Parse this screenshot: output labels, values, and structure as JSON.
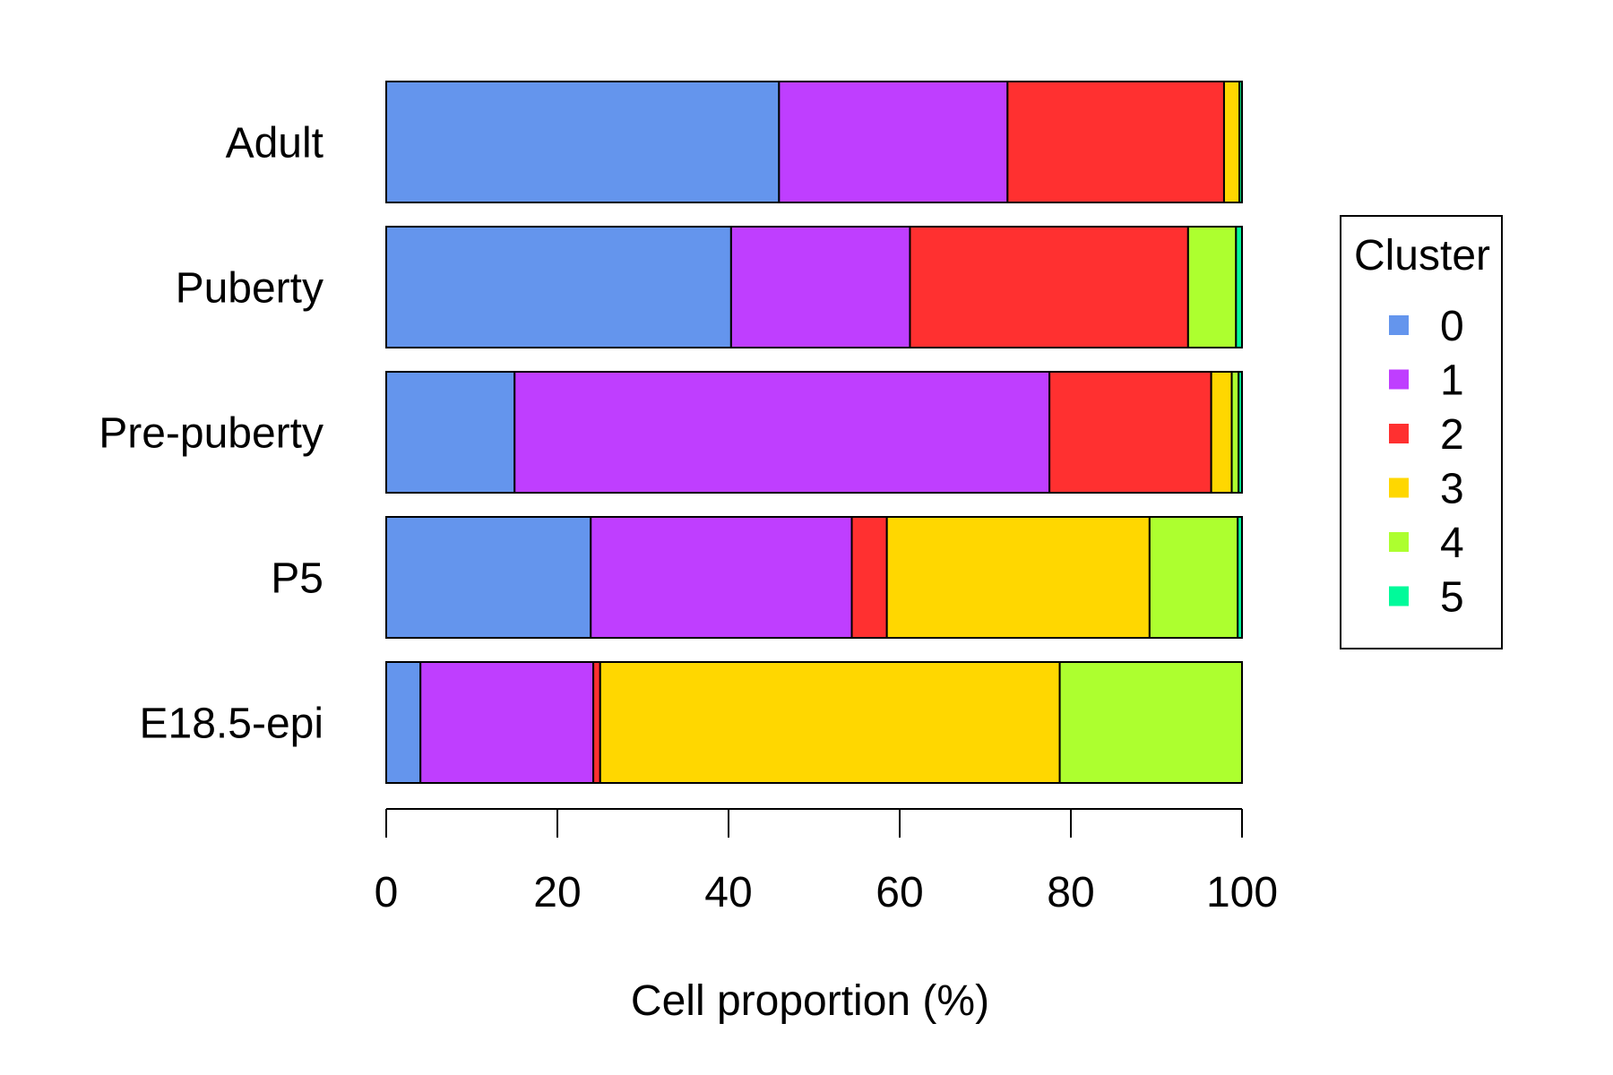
{
  "chart_data": {
    "type": "bar",
    "orientation": "horizontal",
    "stacked": true,
    "categories": [
      "Adult",
      "Puberty",
      "Pre-puberty",
      "P5",
      "E18.5-epi"
    ],
    "series": [
      {
        "name": "0",
        "color": "#6495ED",
        "values": [
          45.9,
          40.3,
          15.0,
          23.9,
          4.0
        ]
      },
      {
        "name": "1",
        "color": "#BF3EFF",
        "values": [
          26.7,
          20.9,
          62.5,
          30.5,
          20.2
        ]
      },
      {
        "name": "2",
        "color": "#FF3030",
        "values": [
          25.3,
          32.5,
          18.9,
          4.1,
          0.8
        ]
      },
      {
        "name": "3",
        "color": "#FFD700",
        "values": [
          1.8,
          0.0,
          2.4,
          30.7,
          53.7
        ]
      },
      {
        "name": "4",
        "color": "#ADFF2F",
        "values": [
          0.0,
          5.6,
          0.8,
          10.3,
          21.3
        ]
      },
      {
        "name": "5",
        "color": "#00FA9A",
        "values": [
          0.3,
          0.7,
          0.4,
          0.5,
          0.0
        ]
      }
    ],
    "xlabel": "Cell proportion (%)",
    "ylabel": "",
    "xlim": [
      0,
      100
    ],
    "xticks": [
      "0",
      "20",
      "40",
      "60",
      "80",
      "100"
    ],
    "legend": {
      "title": "Cluster",
      "position": "right"
    },
    "grid": false
  }
}
